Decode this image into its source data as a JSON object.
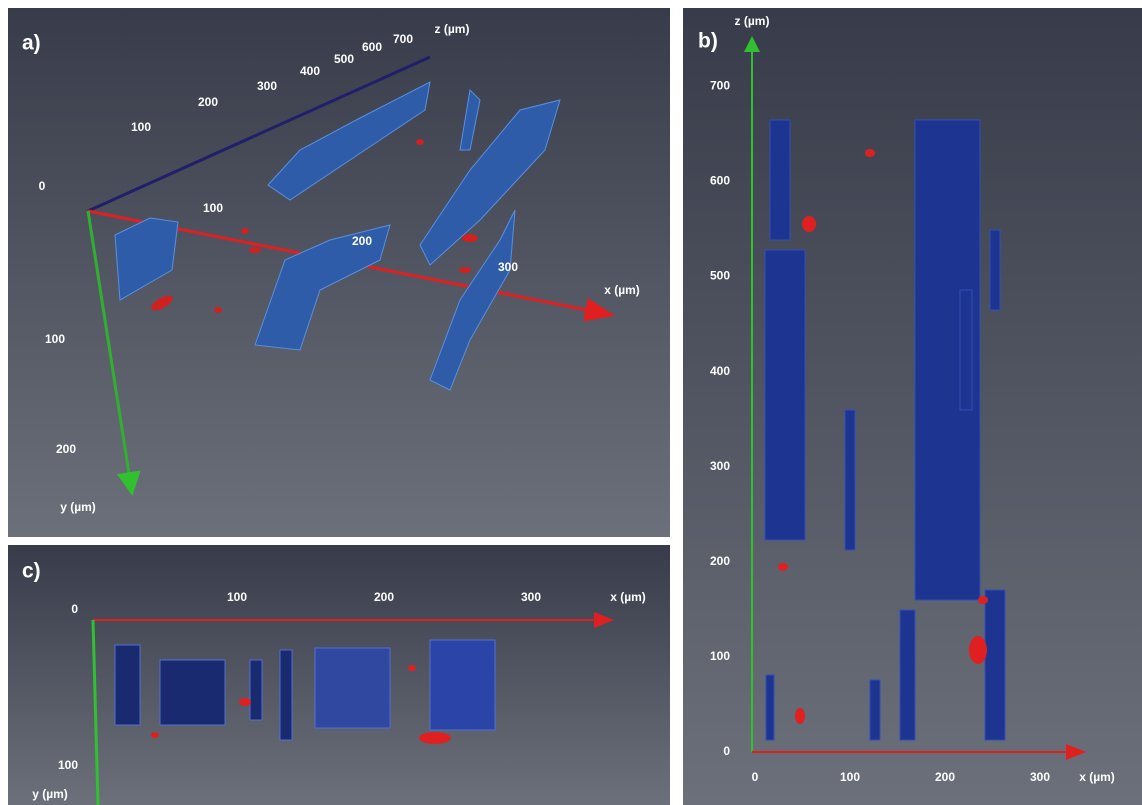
{
  "panels": [
    {
      "label": "a)",
      "axes": {
        "x": {
          "label": "x (µm)",
          "ticks": [
            100,
            200,
            300
          ]
        },
        "y": {
          "label": "y (µm)",
          "ticks": [
            100,
            200
          ]
        },
        "z": {
          "label": "z (µm)",
          "ticks": [
            0,
            100,
            200,
            300,
            400,
            500,
            600,
            700
          ]
        }
      }
    },
    {
      "label": "b)",
      "axes": {
        "x": {
          "label": "x (µm)",
          "ticks": [
            0,
            100,
            200,
            300
          ]
        },
        "z": {
          "label": "z (µm)",
          "ticks": [
            0,
            100,
            200,
            300,
            400,
            500,
            600,
            700
          ]
        }
      }
    },
    {
      "label": "c)",
      "axes": {
        "x": {
          "label": "x (µm)",
          "ticks": [
            100,
            200,
            300
          ]
        },
        "y": {
          "label": "y (µm)",
          "ticks": [
            0,
            100
          ]
        }
      }
    }
  ]
}
